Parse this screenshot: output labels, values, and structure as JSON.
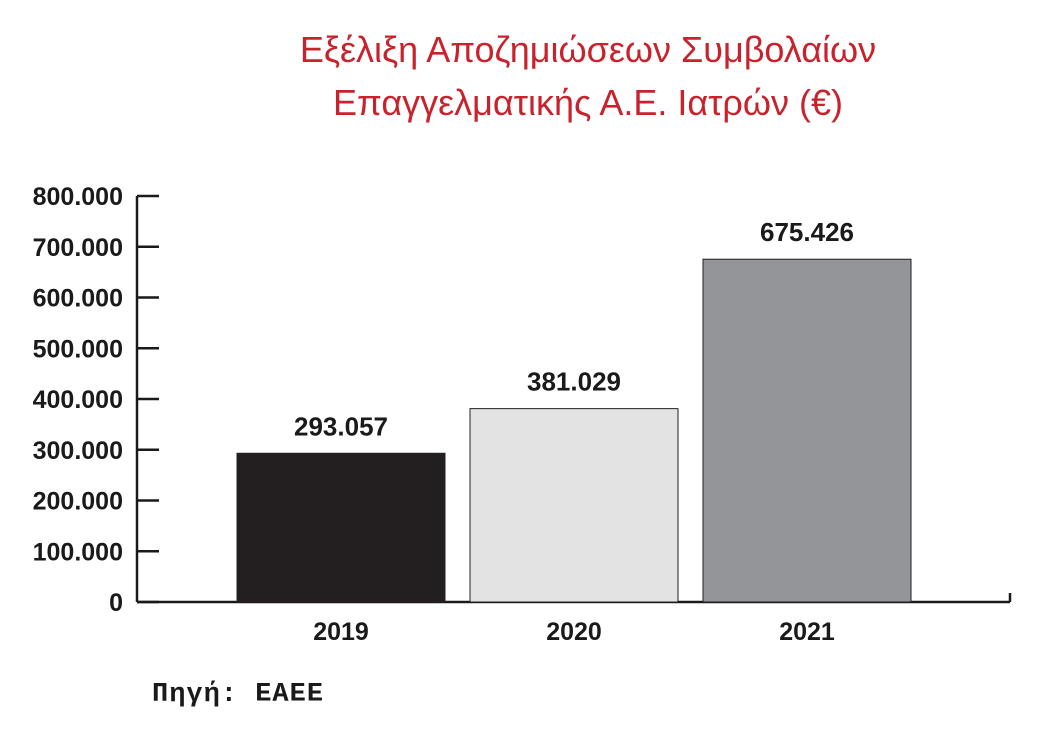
{
  "chart_data": {
    "type": "bar",
    "title": [
      "Εξέλιξη Αποζημιώσεων Συμβολαίων",
      "Επαγγελματικής Α.Ε. Ιατρών (€)"
    ],
    "categories": [
      "2019",
      "2020",
      "2021"
    ],
    "values": [
      293057,
      381029,
      675426
    ],
    "value_labels": [
      "293.057",
      "381.029",
      "675.426"
    ],
    "bar_colors": [
      "#231f20",
      "#e3e3e4",
      "#939598"
    ],
    "ylim": [
      0,
      800000
    ],
    "yticks": [
      0,
      100000,
      200000,
      300000,
      400000,
      500000,
      600000,
      700000,
      800000
    ],
    "ytick_labels": [
      "0",
      "100.000",
      "200.000",
      "300.000",
      "400.000",
      "500.000",
      "600.000",
      "700.000",
      "800.000"
    ],
    "xlabel": "",
    "ylabel": "",
    "grid": false,
    "title_color": "#c8232c"
  },
  "source": "Πηγή: ΕΑΕΕ"
}
